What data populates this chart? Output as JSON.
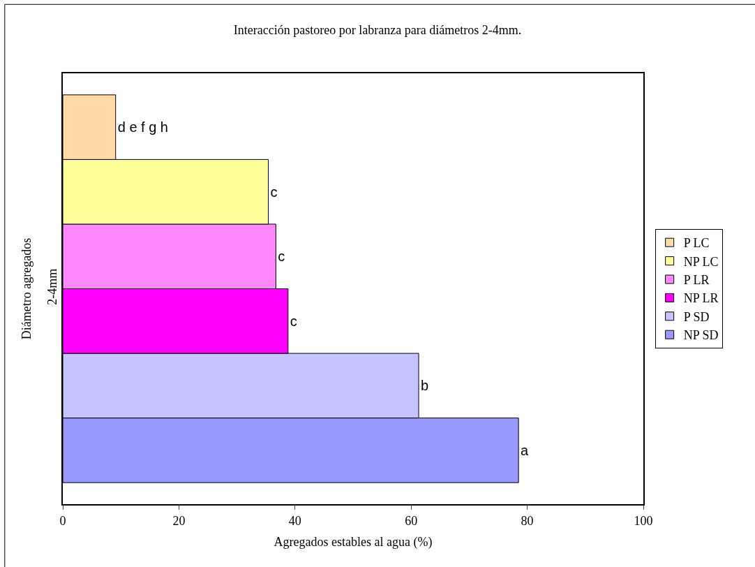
{
  "chart_data": {
    "type": "bar",
    "orientation": "horizontal",
    "title": "Interacción pastoreo por labranza para diámetros 2-4mm.",
    "xlabel": "Agregados estables al agua (%)",
    "ylabel": "Diámetro agregados",
    "categories": [
      "2-4mm"
    ],
    "series": [
      {
        "name": "P LC",
        "color": "#ffd9a8",
        "values": [
          9.1
        ],
        "value_labels": [
          "d e f g h"
        ]
      },
      {
        "name": "NP LC",
        "color": "#ffff99",
        "values": [
          35.4
        ],
        "value_labels": [
          "c"
        ]
      },
      {
        "name": "P LR",
        "color": "#ff88ff",
        "values": [
          36.7
        ],
        "value_labels": [
          "c"
        ]
      },
      {
        "name": "NP LR",
        "color": "#ff00ff",
        "values": [
          38.8
        ],
        "value_labels": [
          "c"
        ]
      },
      {
        "name": "P SD",
        "color": "#c4c4ff",
        "values": [
          61.3
        ],
        "value_labels": [
          "b"
        ]
      },
      {
        "name": "NP SD",
        "color": "#9999ff",
        "values": [
          78.5
        ],
        "value_labels": [
          "a"
        ]
      }
    ],
    "xlim": [
      0,
      100
    ],
    "xticks": [
      0,
      20,
      40,
      60,
      80,
      100
    ],
    "legend": "right"
  }
}
